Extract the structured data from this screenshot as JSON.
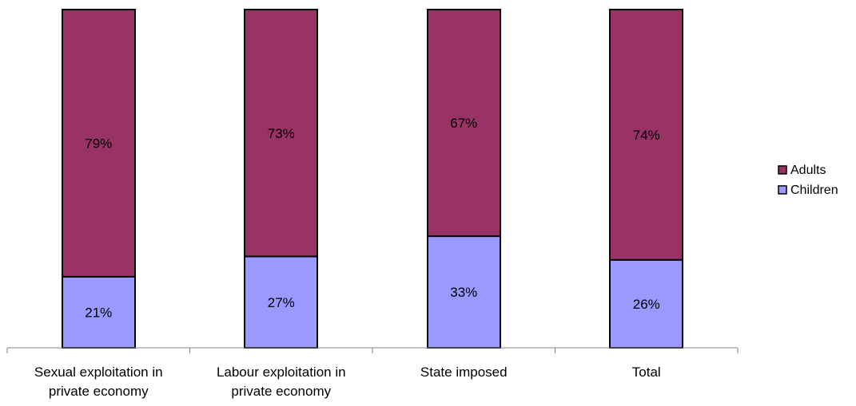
{
  "chart_data": {
    "type": "bar",
    "stacked": true,
    "percent_stacked": true,
    "categories": [
      [
        "Sexual exploitation in",
        "private economy"
      ],
      [
        "Labour exploitation in",
        "private economy"
      ],
      [
        "State imposed"
      ],
      [
        "Total"
      ]
    ],
    "series": [
      {
        "name": "Children",
        "values": [
          21,
          27,
          33,
          26
        ],
        "labels": [
          "21%",
          "27%",
          "33%",
          "26%"
        ],
        "color": "#9999ff"
      },
      {
        "name": "Adults",
        "values": [
          79,
          73,
          67,
          74
        ],
        "labels": [
          "79%",
          "73%",
          "67%",
          "74%"
        ],
        "color": "#993366"
      }
    ],
    "ylim": [
      0,
      100
    ],
    "grid": false,
    "legend_position": "right",
    "legend_order": [
      "Adults",
      "Children"
    ]
  }
}
